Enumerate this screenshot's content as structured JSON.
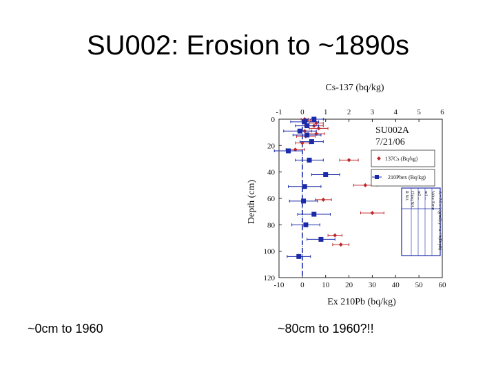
{
  "slide": {
    "title": "SU002: Erosion to ~1890s",
    "caption_left": "~0cm to 1960",
    "caption_right": "~80cm to 1960?!!"
  },
  "colors": {
    "cs137": "#c0282c",
    "pb210": "#1a2aa8",
    "text": "#000000",
    "table_border": "#1a2aa8"
  },
  "chart_data": {
    "type": "scatter",
    "title": "SU002A",
    "subtitle": "7/21/06",
    "top_axis": {
      "label": "Cs-137 (bq/kg)",
      "range": [
        -1,
        6
      ],
      "ticks": [
        "-1",
        "0",
        "1",
        "2",
        "3",
        "4",
        "5",
        "6"
      ]
    },
    "bottom_axis": {
      "label": "Ex 210Pb (bq/kg)",
      "range": [
        -10,
        60
      ],
      "ticks": [
        "-10",
        "0",
        "10",
        "20",
        "30",
        "40",
        "50",
        "60"
      ]
    },
    "y_axis": {
      "label": "Depth (cm)",
      "range": [
        0,
        120
      ],
      "ticks": [
        "0",
        "20",
        "40",
        "60",
        "80",
        "100",
        "120"
      ],
      "inverted": true
    },
    "legend": {
      "placement": "right",
      "entries": [
        "137Cs (Bq/kg)",
        "210Pbex (Bq/kg)"
      ]
    },
    "series": [
      {
        "name": "137Cs (Bq/kg)",
        "axis": "top",
        "marker": "diamond",
        "points": [
          {
            "depth": 0,
            "value": 0.1,
            "err": 0.15
          },
          {
            "depth": 1,
            "value": 0.2,
            "err": 0.15
          },
          {
            "depth": 3,
            "value": 0.6,
            "err": 0.3
          },
          {
            "depth": 5,
            "value": 0.5,
            "err": 0.4
          },
          {
            "depth": 7,
            "value": 0.7,
            "err": 0.4
          },
          {
            "depth": 9,
            "value": 0.1,
            "err": 0.3
          },
          {
            "depth": 11,
            "value": 0.6,
            "err": 0.35
          },
          {
            "depth": 13,
            "value": 0.15,
            "err": 0.4
          },
          {
            "depth": 18,
            "value": 0.0,
            "err": 0.3
          },
          {
            "depth": 23,
            "value": -0.3,
            "err": 0.4
          },
          {
            "depth": 31,
            "value": 2.0,
            "err": 0.4
          },
          {
            "depth": 50,
            "value": 2.7,
            "err": 0.5
          },
          {
            "depth": 61,
            "value": 0.9,
            "err": 0.35
          },
          {
            "depth": 71,
            "value": 3.0,
            "err": 0.5
          },
          {
            "depth": 88,
            "value": 1.4,
            "err": 0.3
          },
          {
            "depth": 95,
            "value": 1.65,
            "err": 0.35
          }
        ]
      },
      {
        "name": "210Pbex (Bq/kg)",
        "axis": "bottom",
        "marker": "square",
        "points": [
          {
            "depth": 0,
            "value": 5,
            "err": 4
          },
          {
            "depth": 2,
            "value": 1,
            "err": 6
          },
          {
            "depth": 5,
            "value": 2,
            "err": 5
          },
          {
            "depth": 9,
            "value": -1,
            "err": 7
          },
          {
            "depth": 12,
            "value": 2,
            "err": 6
          },
          {
            "depth": 17,
            "value": 4,
            "err": 5
          },
          {
            "depth": 24,
            "value": -6,
            "err": 6
          },
          {
            "depth": 31,
            "value": 3,
            "err": 6
          },
          {
            "depth": 42,
            "value": 10,
            "err": 6
          },
          {
            "depth": 51,
            "value": 1,
            "err": 7
          },
          {
            "depth": 62,
            "value": 0.5,
            "err": 6
          },
          {
            "depth": 72,
            "value": 5,
            "err": 7
          },
          {
            "depth": 80,
            "value": 1.5,
            "err": 6
          },
          {
            "depth": 91,
            "value": 8,
            "err": 6
          },
          {
            "depth": 104,
            "value": -1.5,
            "err": 5
          }
        ]
      }
    ],
    "reference_lines": [
      {
        "axis": "bottom",
        "value": 0,
        "style": "dotted"
      },
      {
        "axis": "top",
        "value": 0,
        "style": "dashed"
      }
    ],
    "inset_table_rows": [
      "A = 7.5 ± ? (g/m2) y = a + b(Depth)",
      "Value Error",
      "m1 ...",
      "m2 ...",
      "Chisq NA",
      "R NA"
    ]
  }
}
